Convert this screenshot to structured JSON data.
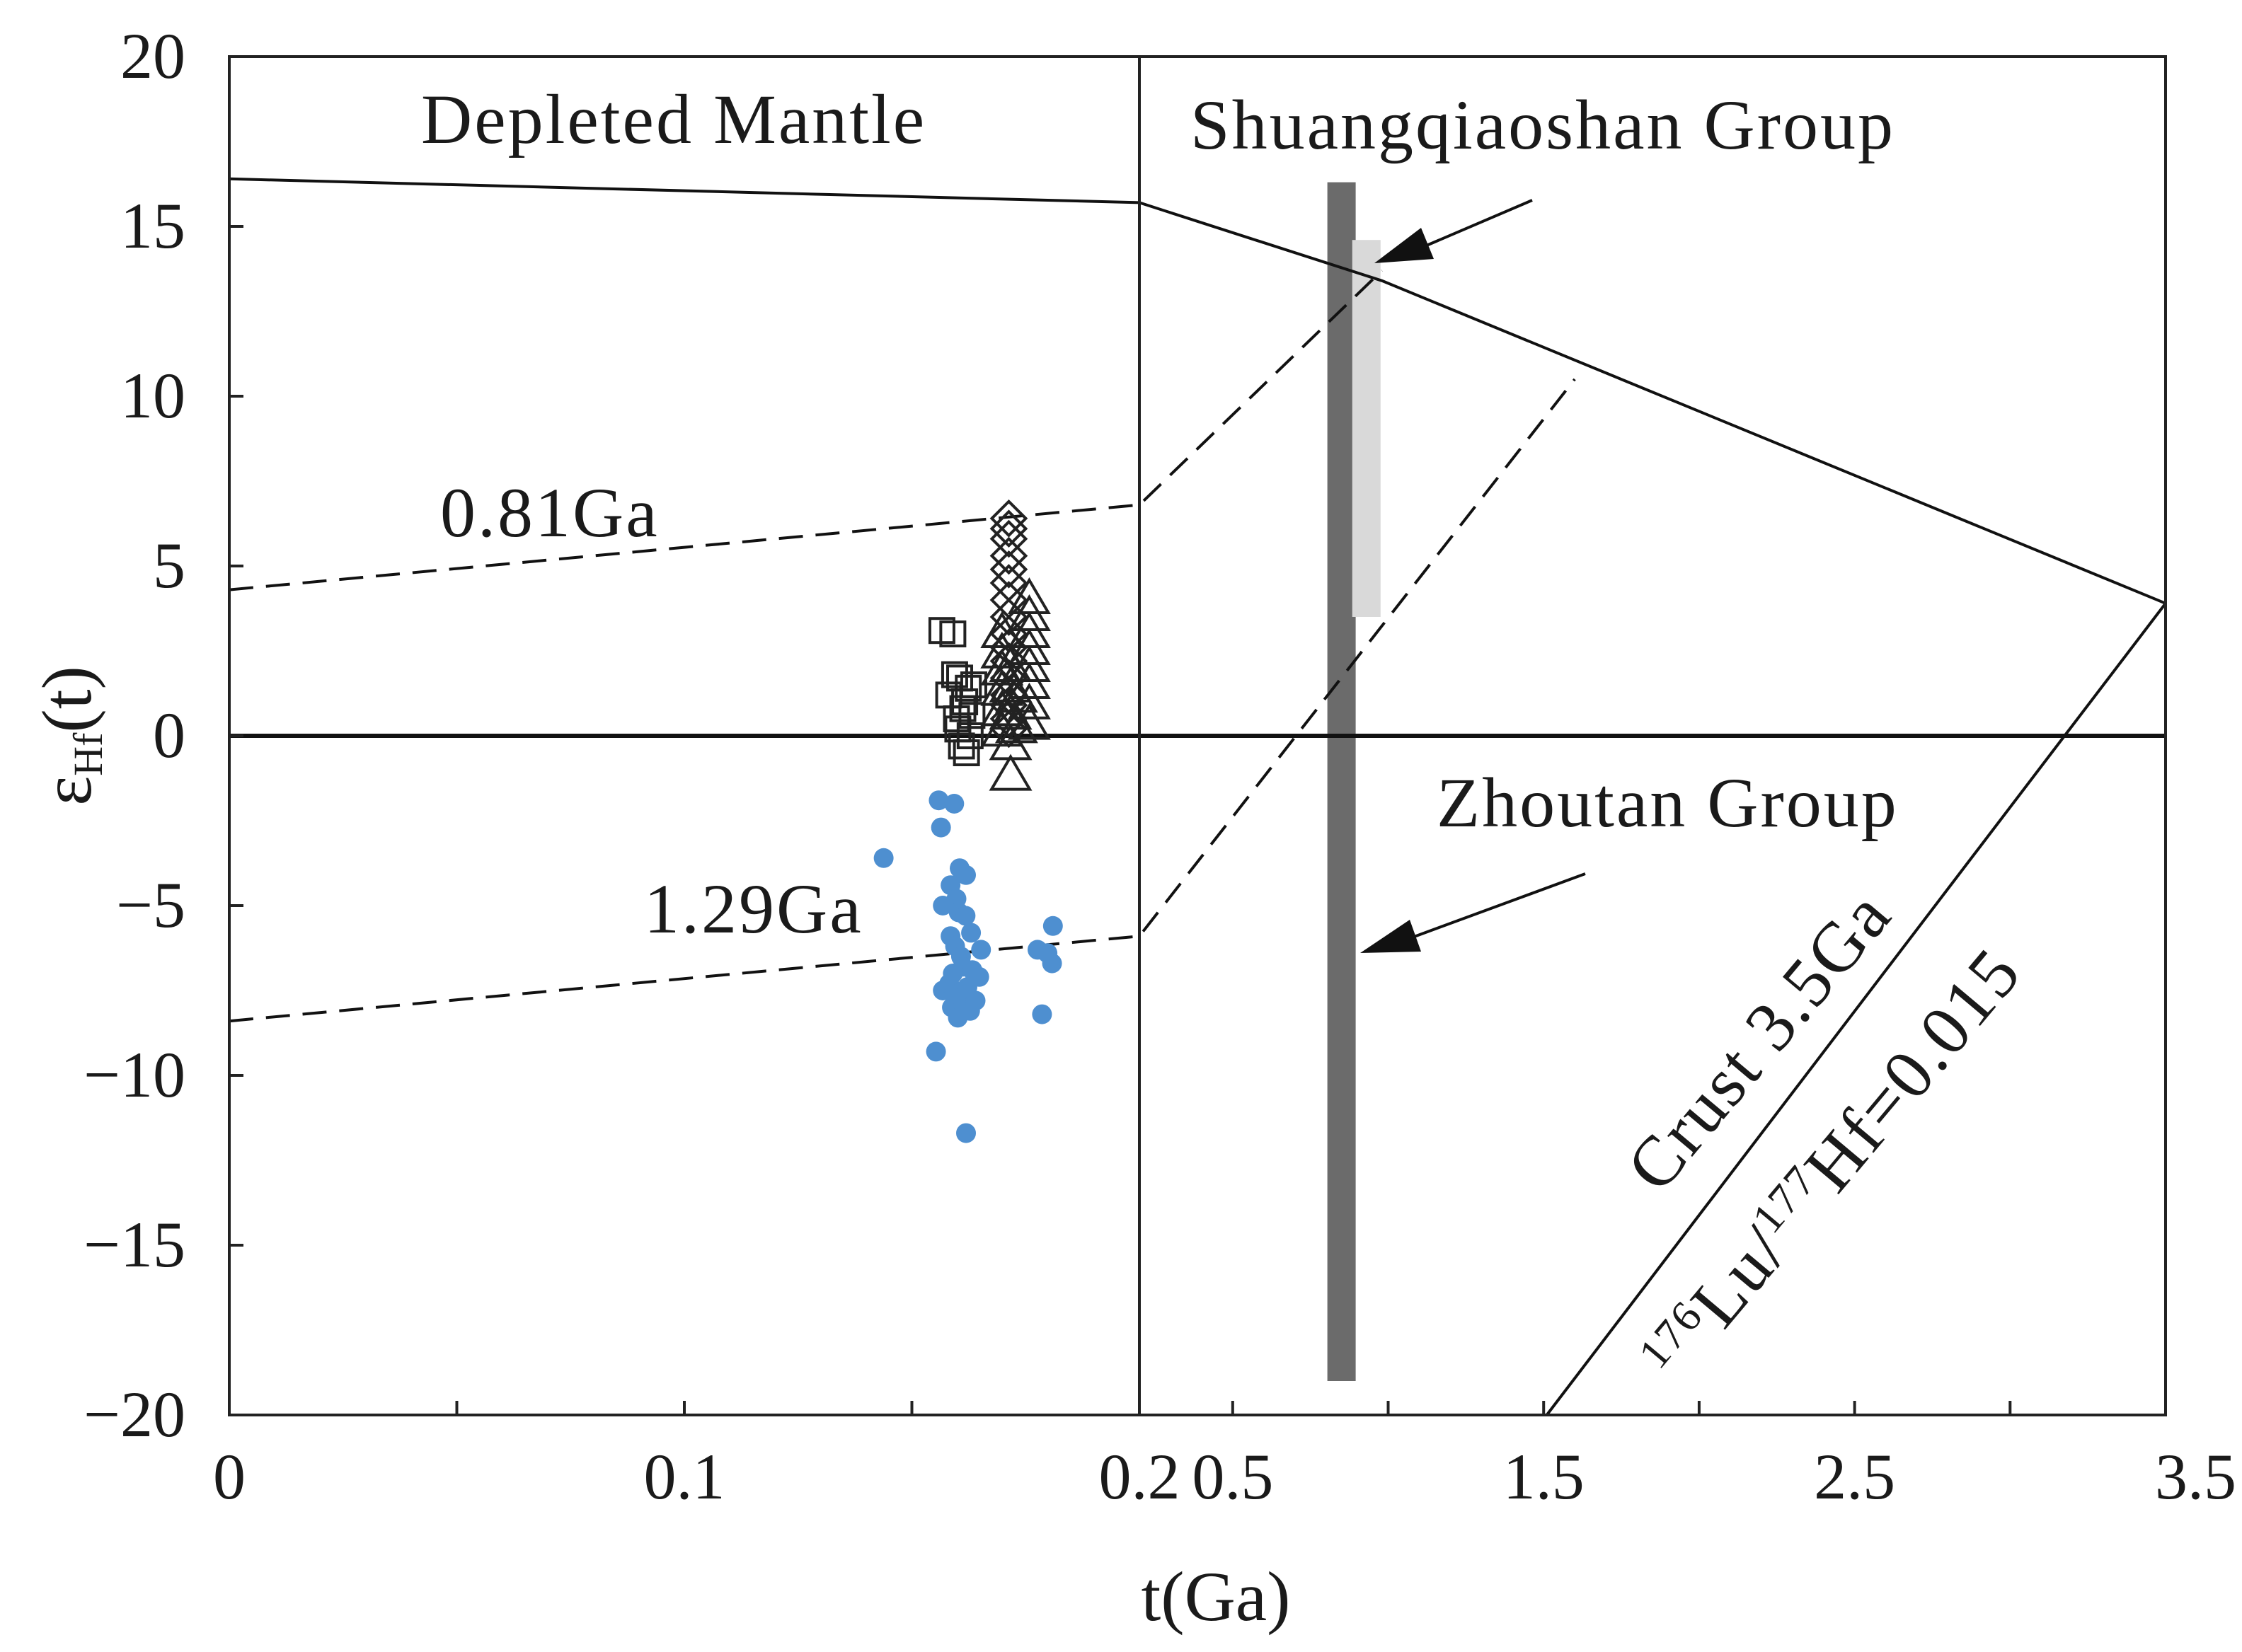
{
  "chart_data": {
    "type": "scatter",
    "xlabel": "t(Ga)",
    "ylabel_main": "ε",
    "ylabel_sub": "Hf",
    "ylabel_tail": "(t)",
    "ylim": [
      -20,
      20
    ],
    "yticks": [
      20,
      15,
      10,
      5,
      0,
      -5,
      -10,
      -15,
      -20
    ],
    "ytick_labels": [
      "20",
      "15",
      "10",
      "5",
      "0",
      "−5",
      "−10",
      "−15",
      "−20"
    ],
    "x_panels": [
      {
        "name": "left",
        "xlim": [
          0,
          0.2
        ],
        "tick_values": [
          0,
          0.1
        ],
        "tick_labels": [
          "0",
          "0.1"
        ],
        "minor_ticks": [
          0.05,
          0.15
        ]
      },
      {
        "name": "right",
        "xlim": [
          0.2,
          3.5
        ],
        "tick_values": [
          0.5,
          1.5,
          2.5,
          3.5
        ],
        "tick_labels": [
          "0.5",
          "1.5",
          "2.5",
          "3.5"
        ],
        "minor_ticks": [
          1.0,
          2.0,
          3.0
        ]
      }
    ],
    "boundary_label": "0.2",
    "reference_lines": [
      {
        "name": "depleted-mantle",
        "style": "solid",
        "points": [
          [
            0,
            16.4
          ],
          [
            0.2,
            15.7
          ],
          [
            0.98,
            13.4
          ],
          [
            3.5,
            3.9
          ]
        ]
      },
      {
        "name": "chur",
        "style": "solid",
        "points": [
          [
            0,
            0
          ],
          [
            3.5,
            0
          ]
        ]
      },
      {
        "name": "crust-3.5Ga",
        "style": "solid",
        "points": [
          [
            1.51,
            -20
          ],
          [
            3.5,
            3.9
          ]
        ]
      },
      {
        "name": "evolution-0.81Ga",
        "style": "dashed",
        "points": [
          [
            0,
            4.3
          ],
          [
            0.2,
            6.8
          ],
          [
            0.98,
            13.7
          ]
        ]
      },
      {
        "name": "evolution-1.29Ga",
        "style": "dashed",
        "points": [
          [
            0,
            -8.4
          ],
          [
            0.2,
            -5.9
          ],
          [
            1.6,
            10.5
          ]
        ]
      }
    ],
    "ranges": [
      {
        "name": "Zhoutan Group",
        "t": 0.85,
        "ymin": -19,
        "ymax": 16.3,
        "color": "#6b6b6b"
      },
      {
        "name": "Shuangqiaoshan Group",
        "t": 0.93,
        "ymin": 3.5,
        "ymax": 14.6,
        "color": "#d9d9d9"
      }
    ],
    "series": [
      {
        "name": "squares",
        "marker": "square",
        "color": "#222222",
        "points": [
          [
            0.1566,
            3.1
          ],
          [
            0.1581,
            1.2
          ],
          [
            0.159,
            3.0
          ],
          [
            0.1594,
            1.8
          ],
          [
            0.1598,
            0.5
          ],
          [
            0.1601,
            0.2
          ],
          [
            0.1605,
            1.7
          ],
          [
            0.1609,
            -0.3
          ],
          [
            0.1612,
            0.8
          ],
          [
            0.1616,
            1.0
          ],
          [
            0.162,
            -0.5
          ],
          [
            0.1624,
            1.4
          ],
          [
            0.1628,
            0.0
          ],
          [
            0.1632,
            0.6
          ],
          [
            0.1636,
            1.5
          ]
        ]
      },
      {
        "name": "diamonds",
        "marker": "diamond",
        "color": "#222222",
        "points": [
          [
            0.1713,
            6.4
          ],
          [
            0.1713,
            6.1
          ],
          [
            0.1713,
            5.8
          ],
          [
            0.1713,
            5.3
          ],
          [
            0.1713,
            4.9
          ],
          [
            0.1713,
            4.5
          ],
          [
            0.1713,
            4.0
          ],
          [
            0.1713,
            3.5
          ],
          [
            0.1713,
            3.0
          ],
          [
            0.1713,
            2.6
          ],
          [
            0.1713,
            2.2
          ],
          [
            0.1713,
            1.7
          ],
          [
            0.1713,
            1.2
          ],
          [
            0.1713,
            0.9
          ],
          [
            0.1713,
            0.5
          ],
          [
            0.1713,
            0.2
          ]
        ]
      },
      {
        "name": "triangles",
        "marker": "triangle",
        "color": "#222222",
        "points": [
          [
            0.1698,
            3.0
          ],
          [
            0.1698,
            2.4
          ],
          [
            0.1698,
            1.9
          ],
          [
            0.1698,
            1.3
          ],
          [
            0.1698,
            0.7
          ],
          [
            0.1698,
            0.1
          ],
          [
            0.1717,
            2.0
          ],
          [
            0.1717,
            1.4
          ],
          [
            0.1717,
            0.6
          ],
          [
            0.1717,
            -0.3
          ],
          [
            0.1717,
            -1.2
          ],
          [
            0.173,
            1.1
          ],
          [
            0.173,
            0.2
          ],
          [
            0.1758,
            4.0
          ],
          [
            0.1758,
            3.5
          ],
          [
            0.1758,
            3.0
          ],
          [
            0.1758,
            2.5
          ],
          [
            0.1758,
            2.0
          ],
          [
            0.1758,
            1.5
          ],
          [
            0.1758,
            0.9
          ],
          [
            0.1758,
            0.3
          ]
        ]
      },
      {
        "name": "dots",
        "marker": "circle",
        "color": "#4e8fd0",
        "points": [
          [
            0.1438,
            -3.6
          ],
          [
            0.1553,
            -9.3
          ],
          [
            0.1559,
            -1.9
          ],
          [
            0.1564,
            -2.7
          ],
          [
            0.1568,
            -7.5
          ],
          [
            0.1568,
            -5.0
          ],
          [
            0.1582,
            -7.3
          ],
          [
            0.1585,
            -4.4
          ],
          [
            0.1585,
            -5.9
          ],
          [
            0.1588,
            -8.0
          ],
          [
            0.159,
            -7.0
          ],
          [
            0.1593,
            -2.0
          ],
          [
            0.1595,
            -6.2
          ],
          [
            0.1598,
            -7.6
          ],
          [
            0.1598,
            -4.8
          ],
          [
            0.1601,
            -8.3
          ],
          [
            0.1603,
            -5.2
          ],
          [
            0.1605,
            -3.9
          ],
          [
            0.1608,
            -6.5
          ],
          [
            0.161,
            -7.7
          ],
          [
            0.1612,
            -6.8
          ],
          [
            0.1618,
            -5.3
          ],
          [
            0.1619,
            -4.1
          ],
          [
            0.1619,
            -11.7
          ],
          [
            0.1622,
            -7.4
          ],
          [
            0.1628,
            -8.1
          ],
          [
            0.163,
            -5.8
          ],
          [
            0.1633,
            -6.9
          ],
          [
            0.164,
            -7.8
          ],
          [
            0.1648,
            -7.1
          ],
          [
            0.1652,
            -6.3
          ],
          [
            0.1776,
            -6.3
          ],
          [
            0.1786,
            -8.2
          ],
          [
            0.1798,
            -6.4
          ],
          [
            0.1808,
            -6.7
          ],
          [
            0.181,
            -5.6
          ]
        ]
      }
    ],
    "annotations": {
      "depleted_mantle": "Depleted Mantle",
      "shuangqiaoshan": "Shuangqiaoshan Group",
      "zhoutan": "Zhoutan Group",
      "ga081": "0.81Ga",
      "ga129": "1.29Ga",
      "crust": "Crust 3.5Ga",
      "ratio_sup1": "176",
      "ratio_lu": "Lu/",
      "ratio_sup2": "177",
      "ratio_hf": "Hf=0.015"
    }
  }
}
